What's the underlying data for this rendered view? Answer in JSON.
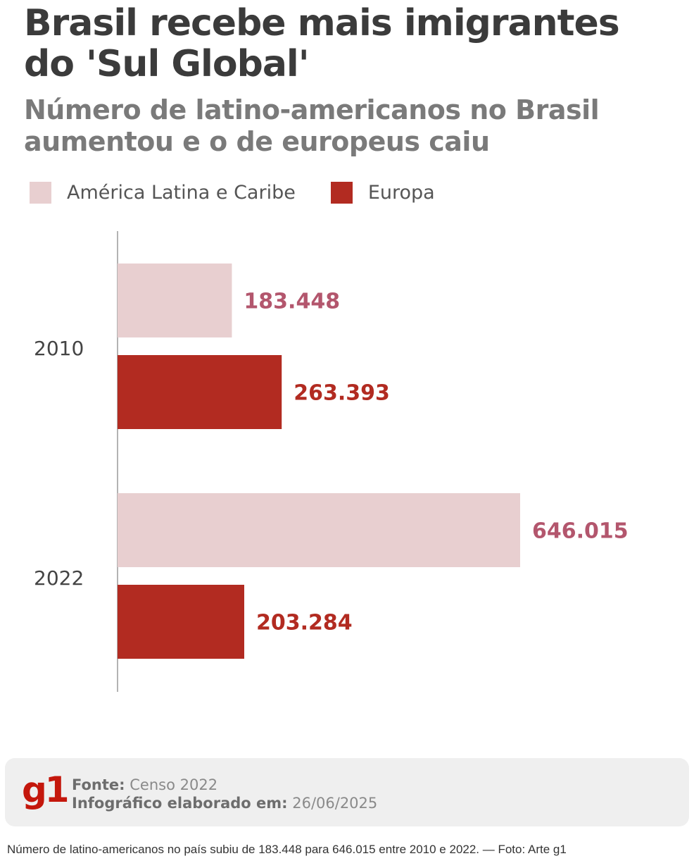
{
  "header": {
    "title": "Brasil recebe mais imigrantes do 'Sul Global'",
    "subtitle": "Número de latino-americanos no Brasil aumentou e o de europeus caiu"
  },
  "legend": [
    {
      "label": "América Latina e Caribe",
      "color": "#e8cfd0"
    },
    {
      "label": "Europa",
      "color": "#b22b21"
    }
  ],
  "chart_data": {
    "type": "bar",
    "orientation": "horizontal",
    "categories": [
      "2010",
      "2022"
    ],
    "series": [
      {
        "name": "América Latina e Caribe",
        "values": [
          183448,
          646015
        ],
        "labels": [
          "183.448",
          "646.015"
        ],
        "color": "#e8cfd0",
        "label_color": "#b3566d"
      },
      {
        "name": "Europa",
        "values": [
          263393,
          203284
        ],
        "labels": [
          "263.393",
          "203.284"
        ],
        "color": "#b22b21",
        "label_color": "#b22b21"
      }
    ],
    "xlim": [
      0,
      646015
    ],
    "grid": false,
    "legend_position": "top-left"
  },
  "footer": {
    "logo": "g1",
    "source_label": "Fonte:",
    "source_value": "Censo 2022",
    "date_label": "Infográfico elaborado em:",
    "date_value": "26/06/2025"
  },
  "caption": "Número de latino-americanos no país subiu de 183.448 para 646.015 entre 2010 e 2022. — Foto: Arte g1"
}
